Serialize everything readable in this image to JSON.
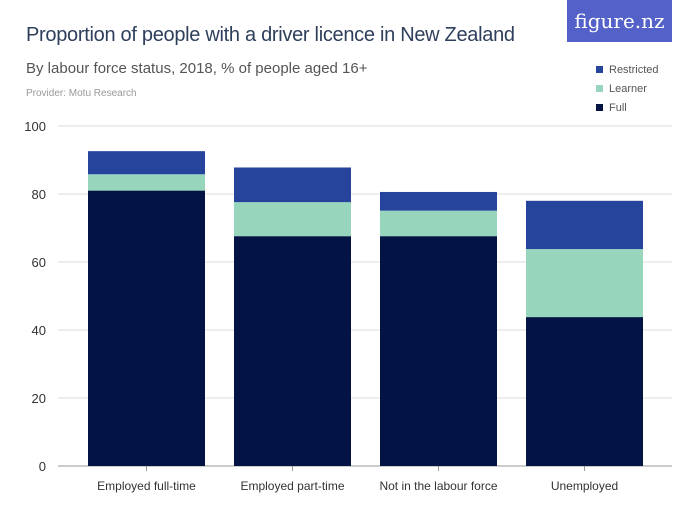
{
  "header": {
    "title": "Proportion of people with a driver licence in New Zealand",
    "subtitle": "By labour force status, 2018, % of people aged 16+",
    "provider": "Provider: Motu Research",
    "logo": "figure.nz"
  },
  "chart_data": {
    "type": "bar",
    "stacked": true,
    "title": "Proportion of people with a driver licence in New Zealand",
    "subtitle": "By labour force status, 2018, % of people aged 16+",
    "categories": [
      "Employed full-time",
      "Employed part-time",
      "Not in the labour force",
      "Unemployed"
    ],
    "series": [
      {
        "name": "Full",
        "color": "#031344",
        "values": [
          81.0,
          67.6,
          67.6,
          43.8
        ]
      },
      {
        "name": "Learner",
        "color": "#97d6bd",
        "values": [
          4.8,
          10.0,
          7.5,
          20.0
        ]
      },
      {
        "name": "Restricted",
        "color": "#27449c",
        "values": [
          6.8,
          10.2,
          5.5,
          14.2
        ]
      }
    ],
    "ylim": [
      0,
      100
    ],
    "yticks": [
      0,
      20,
      40,
      60,
      80,
      100
    ],
    "grid": true,
    "legend_placement": "top-right",
    "legend_order": [
      "Restricted",
      "Learner",
      "Full"
    ]
  }
}
